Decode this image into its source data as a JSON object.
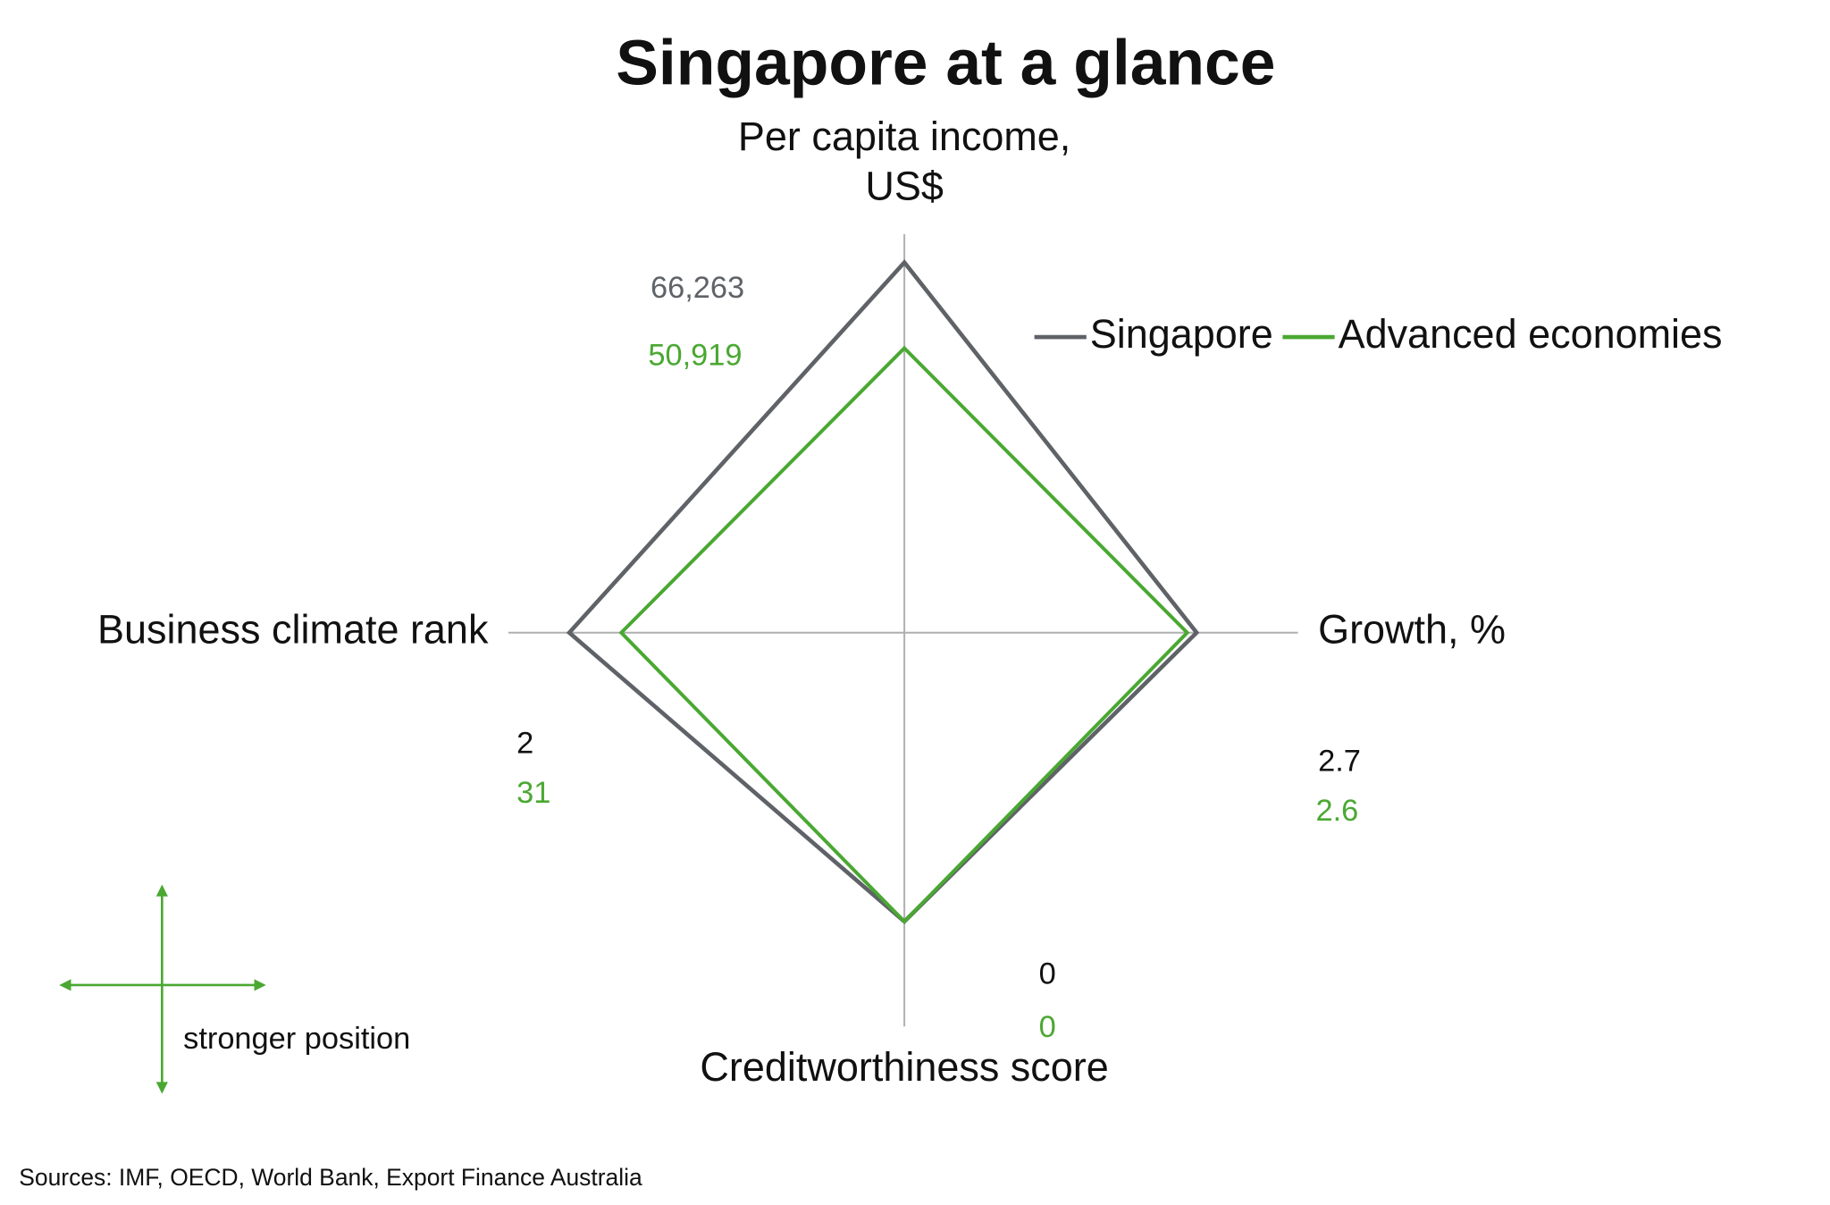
{
  "chart_data": {
    "type": "radar",
    "title": "Singapore at a glance",
    "axes": [
      {
        "label": "Per capita income, US$",
        "rlim": [
          0,
          70900
        ]
      },
      {
        "label": "Growth, %",
        "rlim": [
          -0.4,
          3.8
        ]
      },
      {
        "label": "Creditworthiness score",
        "rlim": [
          -7,
          2.6
        ]
      },
      {
        "label": "Business climate rank",
        "rlim": [
          189,
          -32
        ]
      }
    ],
    "series": [
      {
        "name": "Singapore",
        "color": "#5f6368",
        "values": [
          66263,
          2.7,
          0,
          2
        ],
        "value_labels": [
          "66,263",
          "2.7",
          "0",
          "2"
        ]
      },
      {
        "name": "Advanced economies",
        "color": "#4aa832",
        "values": [
          50919,
          2.6,
          0,
          31
        ],
        "value_labels": [
          "50,919",
          "2.6",
          "0",
          "31"
        ]
      }
    ],
    "legend": "top-right",
    "annotation": "stronger position",
    "source": "Sources: IMF, OECD, World Bank, Export Finance Australia"
  }
}
